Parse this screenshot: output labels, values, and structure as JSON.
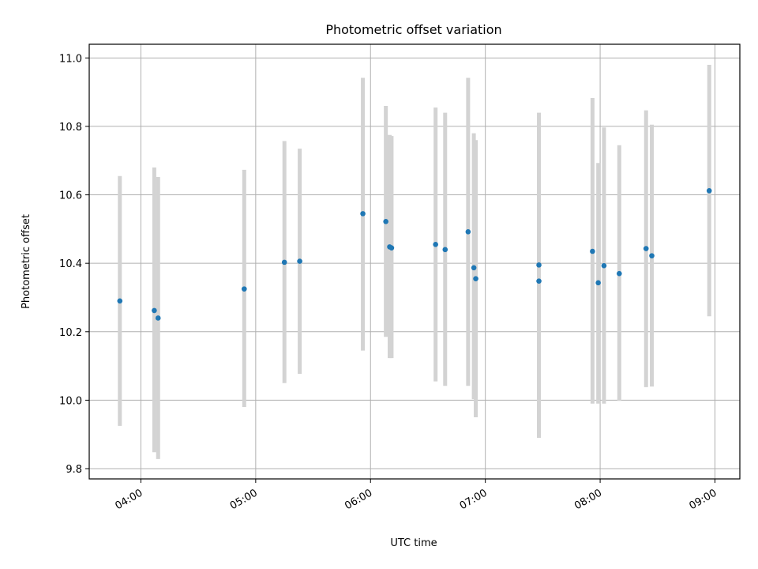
{
  "chart_data": {
    "type": "scatter",
    "title": "Photometric offset variation",
    "xlabel": "UTC time",
    "ylabel": "Photometric offset",
    "xlim": [
      "03:33",
      "09:13"
    ],
    "ylim": [
      9.77,
      11.04
    ],
    "xticks": [
      "04:00",
      "05:00",
      "06:00",
      "07:00",
      "08:00",
      "09:00"
    ],
    "yticks": [
      "9.8",
      "10.0",
      "10.2",
      "10.4",
      "10.6",
      "10.8",
      "11.0"
    ],
    "grid": true,
    "legend": "none",
    "colors": {
      "points": "#1f77b4",
      "errorbars": "#d3d3d3",
      "grid": "#b0b0b0"
    },
    "points": [
      {
        "t": "03:49",
        "y": 10.29,
        "lo": 9.925,
        "hi": 10.655
      },
      {
        "t": "04:07",
        "y": 10.262,
        "lo": 9.848,
        "hi": 10.68
      },
      {
        "t": "04:09",
        "y": 10.24,
        "lo": 9.828,
        "hi": 10.652
      },
      {
        "t": "04:54",
        "y": 10.325,
        "lo": 9.98,
        "hi": 10.673
      },
      {
        "t": "05:15",
        "y": 10.403,
        "lo": 10.05,
        "hi": 10.757
      },
      {
        "t": "05:23",
        "y": 10.406,
        "lo": 10.077,
        "hi": 10.735
      },
      {
        "t": "05:56",
        "y": 10.545,
        "lo": 10.145,
        "hi": 10.942
      },
      {
        "t": "06:08",
        "y": 10.522,
        "lo": 10.185,
        "hi": 10.86
      },
      {
        "t": "06:10",
        "y": 10.448,
        "lo": 10.123,
        "hi": 10.775
      },
      {
        "t": "06:11",
        "y": 10.445,
        "lo": 10.123,
        "hi": 10.772
      },
      {
        "t": "06:34",
        "y": 10.455,
        "lo": 10.055,
        "hi": 10.855
      },
      {
        "t": "06:39",
        "y": 10.44,
        "lo": 10.042,
        "hi": 10.84
      },
      {
        "t": "06:51",
        "y": 10.492,
        "lo": 10.042,
        "hi": 10.942
      },
      {
        "t": "06:54",
        "y": 10.387,
        "lo": 10.003,
        "hi": 10.78
      },
      {
        "t": "06:55",
        "y": 10.355,
        "lo": 9.95,
        "hi": 10.76
      },
      {
        "t": "07:28",
        "y": 10.395,
        "lo": 9.89,
        "hi": 10.84
      },
      {
        "t": "07:28",
        "y": 10.348,
        "lo": 9.89,
        "hi": 10.805
      },
      {
        "t": "07:56",
        "y": 10.435,
        "lo": 9.99,
        "hi": 10.883
      },
      {
        "t": "07:59",
        "y": 10.343,
        "lo": 9.99,
        "hi": 10.693
      },
      {
        "t": "08:02",
        "y": 10.393,
        "lo": 9.99,
        "hi": 10.797
      },
      {
        "t": "08:10",
        "y": 10.37,
        "lo": 9.998,
        "hi": 10.745
      },
      {
        "t": "08:24",
        "y": 10.443,
        "lo": 10.038,
        "hi": 10.847
      },
      {
        "t": "08:27",
        "y": 10.422,
        "lo": 10.04,
        "hi": 10.805
      },
      {
        "t": "08:57",
        "y": 10.612,
        "lo": 10.245,
        "hi": 10.98
      }
    ]
  }
}
